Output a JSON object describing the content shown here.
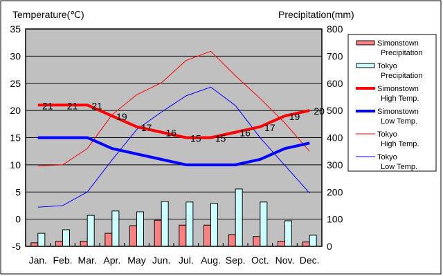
{
  "chart_data": {
    "type": "bar+line",
    "left_axis_title": "Temperature(℃)",
    "right_axis_title": "Precipitation(mm)",
    "categories": [
      "Jan.",
      "Feb.",
      "Mar.",
      "Apr.",
      "May",
      "Jun.",
      "Jul.",
      "Aug.",
      "Sep.",
      "Oct.",
      "Nov.",
      "Dec."
    ],
    "ylim_left": [
      -5,
      35
    ],
    "yticks_left": [
      -5,
      0,
      5,
      10,
      15,
      20,
      25,
      30,
      35
    ],
    "ylim_right": [
      0,
      800
    ],
    "yticks_right": [
      0,
      100,
      200,
      300,
      400,
      500,
      600,
      700,
      800
    ],
    "grid": true,
    "legend_placement": "right",
    "bars": [
      {
        "name": "Simonstown Precipitation",
        "legend": [
          "Simonstown",
          "Precipitation"
        ],
        "color": "#ff8080",
        "values": [
          13,
          19,
          19,
          48,
          76,
          96,
          78,
          78,
          43,
          36,
          19,
          16
        ]
      },
      {
        "name": "Tokyo Precipitation",
        "legend": [
          "Tokyo",
          "Precipitation"
        ],
        "color": "#ccffff",
        "values": [
          48,
          61,
          114,
          130,
          127,
          165,
          163,
          158,
          211,
          163,
          94,
          41
        ]
      }
    ],
    "lines": [
      {
        "name": "Simonstown High Temp.",
        "legend": [
          "Simonstown",
          "High Temp."
        ],
        "color": "#ff0000",
        "width": 4,
        "labels": true,
        "values": [
          21,
          21,
          21,
          19,
          17,
          16,
          15,
          15,
          16,
          17,
          19,
          20
        ]
      },
      {
        "name": "Simonstown Low Temp.",
        "legend": [
          "Simonstown",
          "Low Temp."
        ],
        "color": "#0000ff",
        "width": 4,
        "values": [
          15,
          15,
          15,
          13,
          12,
          11,
          10,
          10,
          10,
          11,
          13,
          14
        ]
      },
      {
        "name": "Tokyo High Temp.",
        "legend": [
          "Tokyo",
          "High Temp."
        ],
        "color": "#ff0000",
        "width": 1,
        "values": [
          9.8,
          10,
          13,
          19.2,
          22.9,
          25.1,
          29.2,
          30.9,
          26.4,
          22.2,
          17.7,
          12.5
        ]
      },
      {
        "name": "Tokyo Low Temp.",
        "legend": [
          "Tokyo",
          "Low Temp."
        ],
        "color": "#0000ff",
        "width": 1,
        "values": [
          2.2,
          2.5,
          5,
          10.9,
          16.5,
          19.7,
          22.7,
          24.3,
          20.9,
          15,
          9.9,
          4.8
        ]
      }
    ]
  }
}
